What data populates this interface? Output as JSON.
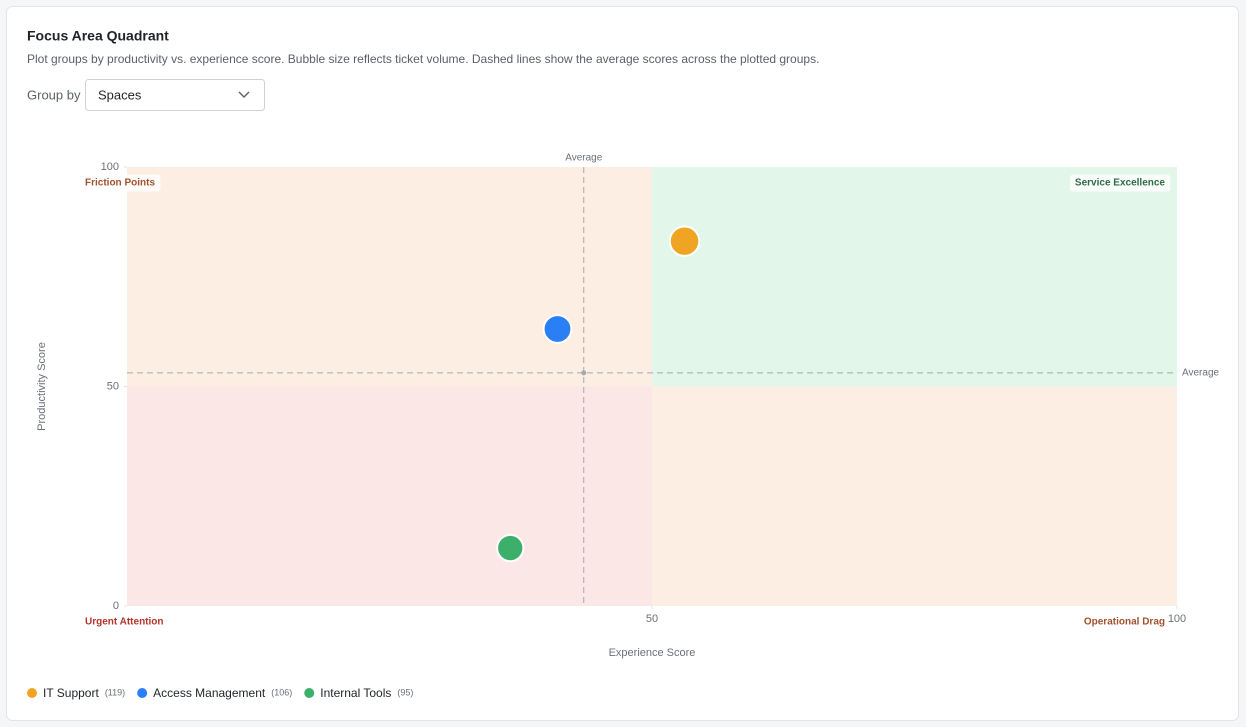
{
  "header": {
    "title": "Focus Area Quadrant",
    "subtitle": "Plot groups by productivity vs. experience score. Bubble size reflects ticket volume. Dashed lines show the average scores across the plotted groups."
  },
  "controls": {
    "group_by_label": "Group by",
    "group_by_value": "Spaces"
  },
  "chart_data": {
    "type": "bubble",
    "x_label": "Experience Score",
    "y_label": "Productivity Score",
    "xlim": [
      0,
      100
    ],
    "ylim": [
      0,
      100
    ],
    "xticks": [
      50,
      100
    ],
    "yticks": [
      0,
      50,
      100
    ],
    "average_label": "Average",
    "x_average": 43.5,
    "y_average": 53.1,
    "quadrant_split": {
      "x": 50,
      "y": 50
    },
    "quadrants": [
      {
        "label": "Friction Points",
        "color": "#fdeee4",
        "text_color": "#a0522d"
      },
      {
        "label": "Service Excellence",
        "color": "#e3f6ea",
        "text_color": "#2f6b45"
      },
      {
        "label": "Urgent Attention",
        "color": "#fce7e7",
        "text_color": "#b3342d"
      },
      {
        "label": "Operational Drag",
        "color": "#fdeee4",
        "text_color": "#a0522d"
      }
    ],
    "series": [
      {
        "name": "IT Support",
        "color": "#f0a424",
        "x": [
          53.1
        ],
        "values": [
          83.1
        ],
        "size": [
          119
        ],
        "size_labels": [
          "(119)"
        ]
      },
      {
        "name": "Access Management",
        "color": "#2a7ff5",
        "x": [
          41
        ],
        "values": [
          63.1
        ],
        "size": [
          106
        ],
        "size_labels": [
          "(106)"
        ]
      },
      {
        "name": "Internal Tools",
        "color": "#3cb06a",
        "x": [
          36.5
        ],
        "values": [
          13.2
        ],
        "size": [
          95
        ],
        "size_labels": [
          "(95)"
        ]
      }
    ]
  }
}
